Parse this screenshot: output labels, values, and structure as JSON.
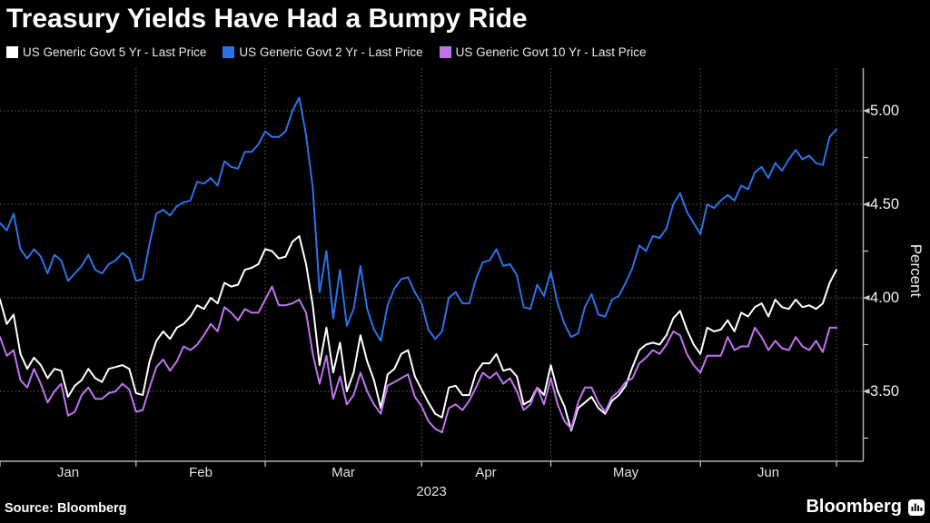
{
  "title": "Treasury Yields Have Had a Bumpy Ride",
  "source": "Source: Bloomberg",
  "branding": {
    "logo_text": "Bloomberg",
    "logo_icon": "bar-levels-icon"
  },
  "colors": {
    "background": "#000000",
    "grid": "#666666",
    "axis": "#b0b0b0",
    "tick": "#cccccc",
    "text": "#e8e8e8"
  },
  "chart_data": {
    "type": "line",
    "title": "Treasury Yields Have Had a Bumpy Ride",
    "x_unit": "daily close, trading days Jan 3 - Jun 30, 2023",
    "legend_position": "top",
    "grid": true,
    "x_axis": {
      "year_label": "2023",
      "month_labels": [
        "Jan",
        "Feb",
        "Mar",
        "Apr",
        "May",
        "Jun"
      ],
      "month_start_indices": [
        0,
        20,
        39,
        62,
        81,
        103
      ],
      "end_index": 123
    },
    "y_axis": {
      "title": "Percent",
      "tick_labels": [
        "5.00",
        "4.50",
        "4.00",
        "3.50"
      ],
      "tick_values": [
        5.0,
        4.5,
        4.0,
        3.5
      ],
      "minor_tick_values": [
        4.75,
        4.25,
        3.75,
        3.25
      ],
      "top": 5.228,
      "bottom": 3.127
    },
    "series": [
      {
        "name": "US Generic Govt 5 Yr - Last Price",
        "color": "#ffffff",
        "values": [
          3.99,
          3.86,
          3.91,
          3.7,
          3.62,
          3.68,
          3.64,
          3.57,
          3.62,
          3.61,
          3.47,
          3.53,
          3.56,
          3.62,
          3.57,
          3.55,
          3.62,
          3.63,
          3.64,
          3.62,
          3.49,
          3.48,
          3.66,
          3.77,
          3.82,
          3.78,
          3.84,
          3.86,
          3.9,
          3.96,
          3.94,
          4.0,
          3.97,
          4.08,
          4.06,
          4.07,
          4.15,
          4.16,
          4.18,
          4.26,
          4.25,
          4.21,
          4.22,
          4.3,
          4.33,
          4.18,
          3.96,
          3.64,
          3.84,
          3.6,
          3.76,
          3.5,
          3.6,
          3.8,
          3.66,
          3.56,
          3.41,
          3.59,
          3.62,
          3.7,
          3.72,
          3.58,
          3.51,
          3.44,
          3.38,
          3.36,
          3.52,
          3.53,
          3.48,
          3.48,
          3.6,
          3.65,
          3.65,
          3.7,
          3.61,
          3.62,
          3.58,
          3.43,
          3.45,
          3.52,
          3.48,
          3.64,
          3.5,
          3.42,
          3.29,
          3.41,
          3.44,
          3.47,
          3.41,
          3.38,
          3.45,
          3.48,
          3.53,
          3.63,
          3.72,
          3.75,
          3.76,
          3.75,
          3.8,
          3.89,
          3.93,
          3.83,
          3.75,
          3.7,
          3.84,
          3.82,
          3.83,
          3.88,
          3.82,
          3.92,
          3.9,
          3.95,
          3.97,
          3.9,
          3.99,
          3.95,
          3.94,
          3.99,
          3.95,
          3.96,
          3.94,
          3.97,
          4.08,
          4.15
        ]
      },
      {
        "name": "US Generic Govt 2 Yr - Last Price",
        "color": "#2d72e8",
        "values": [
          4.4,
          4.36,
          4.45,
          4.26,
          4.21,
          4.26,
          4.22,
          4.13,
          4.23,
          4.2,
          4.09,
          4.13,
          4.17,
          4.23,
          4.15,
          4.13,
          4.18,
          4.2,
          4.24,
          4.21,
          4.09,
          4.1,
          4.29,
          4.45,
          4.47,
          4.44,
          4.49,
          4.51,
          4.52,
          4.62,
          4.61,
          4.64,
          4.6,
          4.73,
          4.7,
          4.69,
          4.78,
          4.78,
          4.82,
          4.89,
          4.86,
          4.86,
          4.89,
          5.0,
          5.07,
          4.87,
          4.59,
          4.03,
          4.25,
          3.89,
          4.15,
          3.85,
          3.94,
          4.17,
          3.94,
          3.83,
          3.77,
          3.96,
          4.05,
          4.1,
          4.11,
          4.03,
          3.97,
          3.83,
          3.78,
          3.82,
          4.0,
          4.03,
          3.97,
          3.97,
          4.1,
          4.19,
          4.2,
          4.26,
          4.17,
          4.18,
          4.12,
          3.95,
          3.94,
          4.07,
          4.01,
          4.14,
          3.97,
          3.86,
          3.79,
          3.81,
          3.95,
          4.02,
          3.91,
          3.9,
          3.99,
          4.01,
          4.08,
          4.16,
          4.28,
          4.25,
          4.33,
          4.32,
          4.37,
          4.5,
          4.56,
          4.46,
          4.4,
          4.34,
          4.5,
          4.48,
          4.52,
          4.55,
          4.52,
          4.6,
          4.58,
          4.67,
          4.7,
          4.64,
          4.72,
          4.68,
          4.74,
          4.79,
          4.74,
          4.76,
          4.72,
          4.71,
          4.86,
          4.9
        ]
      },
      {
        "name": "US Generic Govt 10 Yr - Last Price",
        "color": "#c173ee",
        "values": [
          3.79,
          3.69,
          3.72,
          3.56,
          3.52,
          3.62,
          3.54,
          3.44,
          3.5,
          3.54,
          3.37,
          3.39,
          3.48,
          3.52,
          3.46,
          3.46,
          3.49,
          3.5,
          3.54,
          3.51,
          3.39,
          3.4,
          3.52,
          3.63,
          3.67,
          3.61,
          3.66,
          3.74,
          3.72,
          3.75,
          3.8,
          3.86,
          3.82,
          3.95,
          3.92,
          3.88,
          3.94,
          3.92,
          3.92,
          3.99,
          4.06,
          3.96,
          3.96,
          3.97,
          3.99,
          3.92,
          3.7,
          3.54,
          3.69,
          3.46,
          3.58,
          3.43,
          3.48,
          3.6,
          3.5,
          3.43,
          3.38,
          3.53,
          3.55,
          3.57,
          3.59,
          3.47,
          3.42,
          3.34,
          3.3,
          3.28,
          3.41,
          3.43,
          3.4,
          3.45,
          3.52,
          3.6,
          3.57,
          3.6,
          3.54,
          3.57,
          3.5,
          3.4,
          3.43,
          3.52,
          3.43,
          3.57,
          3.43,
          3.34,
          3.3,
          3.44,
          3.52,
          3.52,
          3.44,
          3.39,
          3.47,
          3.5,
          3.55,
          3.57,
          3.65,
          3.68,
          3.72,
          3.7,
          3.75,
          3.82,
          3.8,
          3.7,
          3.64,
          3.6,
          3.69,
          3.69,
          3.69,
          3.79,
          3.72,
          3.74,
          3.74,
          3.84,
          3.79,
          3.72,
          3.77,
          3.73,
          3.72,
          3.79,
          3.74,
          3.72,
          3.77,
          3.71,
          3.84,
          3.84
        ]
      }
    ]
  }
}
